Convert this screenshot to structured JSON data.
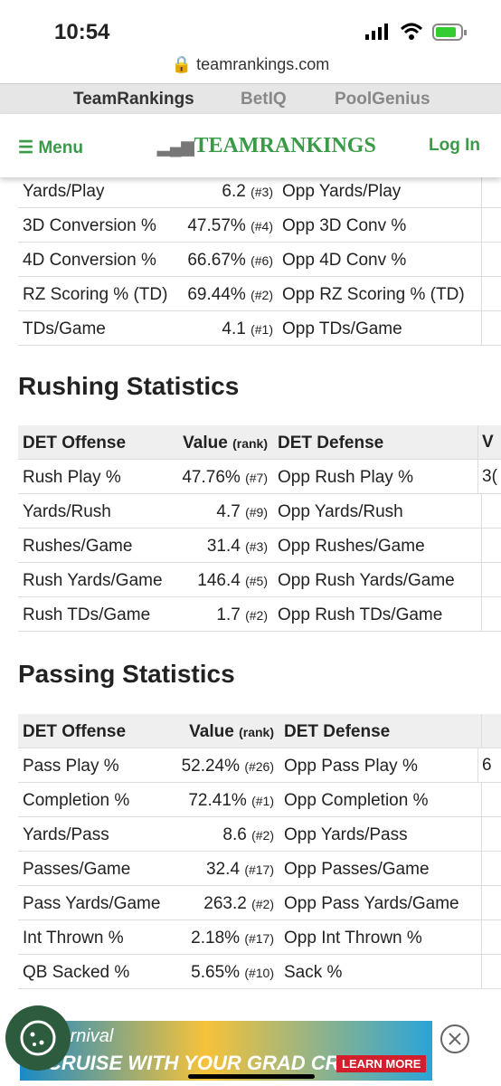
{
  "status": {
    "time": "10:54"
  },
  "browser": {
    "url": "teamrankings.com"
  },
  "tabs": [
    "TeamRankings",
    "BetIQ",
    "PoolGenius"
  ],
  "nav": {
    "menu": "Menu",
    "logo": "TEAMRANKINGS",
    "login": "Log In"
  },
  "top_table": {
    "rows": [
      [
        "Yards/Play",
        "6.2",
        "(#3)",
        "Opp Yards/Play"
      ],
      [
        "3D Conversion %",
        "47.57%",
        "(#4)",
        "Opp 3D Conv %"
      ],
      [
        "4D Conversion %",
        "66.67%",
        "(#6)",
        "Opp 4D Conv %"
      ],
      [
        "RZ Scoring % (TD)",
        "69.44%",
        "(#2)",
        "Opp RZ Scoring % (TD)"
      ],
      [
        "TDs/Game",
        "4.1",
        "(#1)",
        "Opp TDs/Game"
      ]
    ]
  },
  "rushing": {
    "title": "Rushing Statistics",
    "header": [
      "DET Offense",
      "Value",
      "(rank)",
      "DET Defense",
      "V"
    ],
    "rows": [
      [
        "Rush Play %",
        "47.76%",
        "(#7)",
        "Opp Rush Play %",
        "3("
      ],
      [
        "Yards/Rush",
        "4.7",
        "(#9)",
        "Opp Yards/Rush"
      ],
      [
        "Rushes/Game",
        "31.4",
        "(#3)",
        "Opp Rushes/Game"
      ],
      [
        "Rush Yards/Game",
        "146.4",
        "(#5)",
        "Opp Rush Yards/Game"
      ],
      [
        "Rush TDs/Game",
        "1.7",
        "(#2)",
        "Opp Rush TDs/Game"
      ]
    ]
  },
  "passing": {
    "title": "Passing Statistics",
    "header": [
      "DET Offense",
      "Value",
      "(rank)",
      "DET Defense"
    ],
    "rows": [
      [
        "Pass Play %",
        "52.24%",
        "(#26)",
        "Opp Pass Play %",
        "6"
      ],
      [
        "Completion %",
        "72.41%",
        "(#1)",
        "Opp Completion %"
      ],
      [
        "Yards/Pass",
        "8.6",
        "(#2)",
        "Opp Yards/Pass"
      ],
      [
        "Passes/Game",
        "32.4",
        "(#17)",
        "Opp Passes/Game"
      ],
      [
        "Pass Yards/Game",
        "263.2",
        "(#2)",
        "Opp Pass Yards/Game"
      ],
      [
        "Int Thrown %",
        "2.18%",
        "(#17)",
        "Opp Int Thrown %"
      ],
      [
        "QB Sacked %",
        "5.65%",
        "(#10)",
        "Sack %"
      ]
    ]
  },
  "ad": {
    "brand": "Carnival",
    "headline": "CRUISE WITH YOUR GRAD CREW",
    "cta": "LEARN MORE"
  }
}
